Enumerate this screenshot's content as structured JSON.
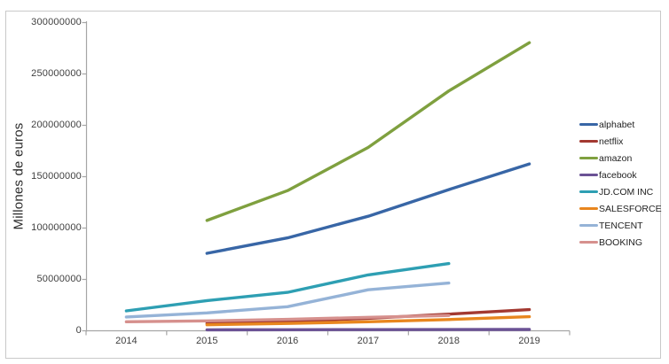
{
  "chart_data": {
    "type": "line",
    "title": "",
    "xlabel": "",
    "ylabel": "Millones de euros",
    "x_labels": [
      "2014",
      "2015",
      "2016",
      "2017",
      "2018",
      "2019"
    ],
    "y_ticks": [
      "0",
      "50000000",
      "100000000",
      "150000000",
      "200000000",
      "250000000",
      "300000000"
    ],
    "ylim": [
      0,
      300000000
    ],
    "grid": false,
    "legend_position": "right",
    "axis_color": "#a6a6a6",
    "border_color": "#c9c9c9",
    "series": [
      {
        "name": "alphabet",
        "color": "#3866a6",
        "values": [
          null,
          75000000,
          90000000,
          111000000,
          137000000,
          162000000
        ]
      },
      {
        "name": "netflix",
        "color": "#a33931",
        "values": [
          null,
          6800000,
          8800000,
          11700000,
          15800000,
          20200000
        ]
      },
      {
        "name": "amazon",
        "color": "#7fa03f",
        "values": [
          null,
          107000000,
          136000000,
          178000000,
          233000000,
          280000000
        ]
      },
      {
        "name": "facebook",
        "color": "#6b5295",
        "values": [
          null,
          500000,
          600000,
          700000,
          800000,
          900000
        ]
      },
      {
        "name": "JD.COM INC",
        "color": "#2e9fb3",
        "values": [
          19000000,
          29000000,
          37000000,
          54000000,
          65000000,
          null
        ]
      },
      {
        "name": "SALESFORCE",
        "color": "#e8861e",
        "values": [
          null,
          5400000,
          6700000,
          8400000,
          10500000,
          13300000
        ]
      },
      {
        "name": "TENCENT",
        "color": "#95b3d7",
        "values": [
          13000000,
          17000000,
          23000000,
          39500000,
          46000000,
          null
        ]
      },
      {
        "name": "BOOKING",
        "color": "#d6908d",
        "values": [
          8400000,
          9200000,
          10700000,
          12700000,
          14500000,
          null
        ]
      }
    ]
  }
}
